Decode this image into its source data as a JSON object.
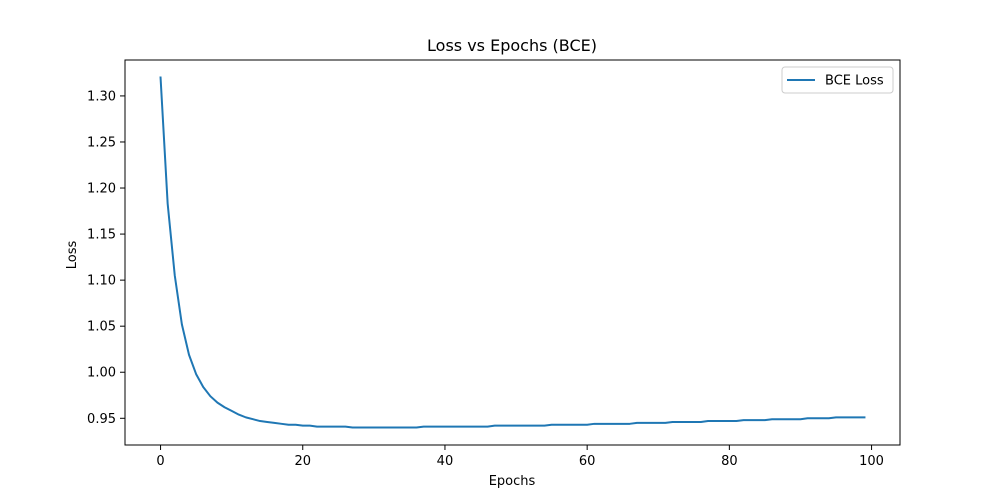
{
  "chart_data": {
    "type": "line",
    "title": "Loss vs Epochs (BCE)",
    "xlabel": "Epochs",
    "ylabel": "Loss",
    "xlim": [
      -5,
      104
    ],
    "ylim": [
      0.921,
      1.339
    ],
    "x_ticks": [
      0,
      20,
      40,
      60,
      80,
      100
    ],
    "y_ticks": [
      0.95,
      1.0,
      1.05,
      1.1,
      1.15,
      1.2,
      1.25,
      1.3
    ],
    "grid": false,
    "legend": "top-right",
    "series": [
      {
        "name": "BCE Loss",
        "color": "#1f77b4",
        "x": [
          0,
          1,
          2,
          3,
          4,
          5,
          6,
          7,
          8,
          9,
          10,
          11,
          12,
          13,
          14,
          15,
          16,
          17,
          18,
          19,
          20,
          21,
          22,
          23,
          24,
          25,
          26,
          27,
          28,
          29,
          30,
          31,
          32,
          33,
          34,
          35,
          36,
          37,
          38,
          39,
          40,
          41,
          42,
          43,
          44,
          45,
          46,
          47,
          48,
          49,
          50,
          51,
          52,
          53,
          54,
          55,
          56,
          57,
          58,
          59,
          60,
          61,
          62,
          63,
          64,
          65,
          66,
          67,
          68,
          69,
          70,
          71,
          72,
          73,
          74,
          75,
          76,
          77,
          78,
          79,
          80,
          81,
          82,
          83,
          84,
          85,
          86,
          87,
          88,
          89,
          90,
          91,
          92,
          93,
          94,
          95,
          96,
          97,
          98,
          99
        ],
        "y": [
          1.32,
          1.183,
          1.105,
          1.052,
          1.019,
          0.998,
          0.984,
          0.974,
          0.967,
          0.962,
          0.958,
          0.954,
          0.951,
          0.949,
          0.947,
          0.946,
          0.945,
          0.944,
          0.943,
          0.943,
          0.942,
          0.942,
          0.941,
          0.941,
          0.941,
          0.941,
          0.941,
          0.94,
          0.94,
          0.94,
          0.94,
          0.94,
          0.94,
          0.94,
          0.94,
          0.94,
          0.94,
          0.941,
          0.941,
          0.941,
          0.941,
          0.941,
          0.941,
          0.941,
          0.941,
          0.941,
          0.941,
          0.942,
          0.942,
          0.942,
          0.942,
          0.942,
          0.942,
          0.942,
          0.942,
          0.943,
          0.943,
          0.943,
          0.943,
          0.943,
          0.943,
          0.944,
          0.944,
          0.944,
          0.944,
          0.944,
          0.944,
          0.945,
          0.945,
          0.945,
          0.945,
          0.945,
          0.946,
          0.946,
          0.946,
          0.946,
          0.946,
          0.947,
          0.947,
          0.947,
          0.947,
          0.947,
          0.948,
          0.948,
          0.948,
          0.948,
          0.949,
          0.949,
          0.949,
          0.949,
          0.949,
          0.95,
          0.95,
          0.95,
          0.95,
          0.951,
          0.951,
          0.951,
          0.951,
          0.951
        ]
      }
    ]
  }
}
